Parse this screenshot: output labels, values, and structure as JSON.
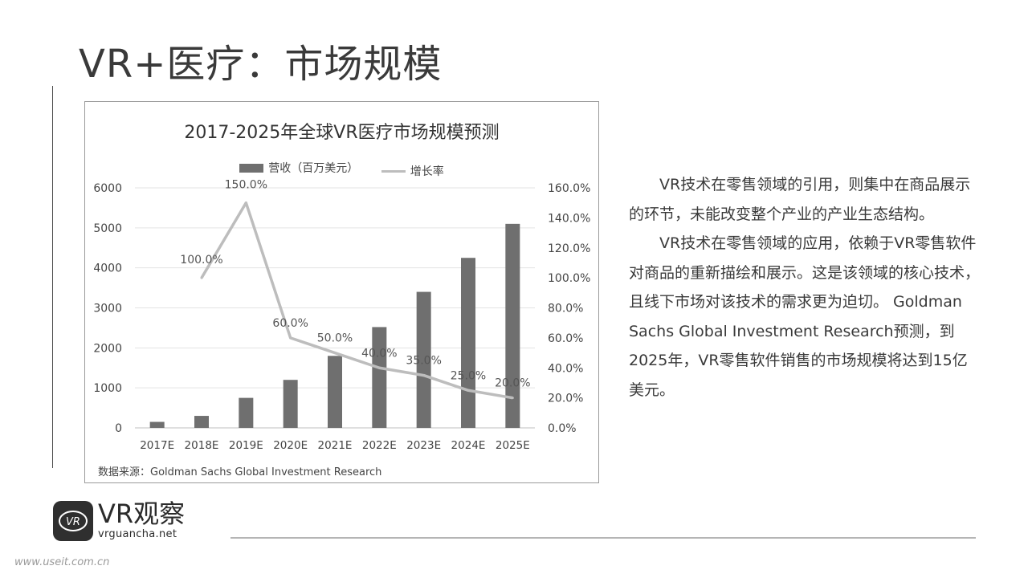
{
  "slide": {
    "title": "VR+医疗：市场规模"
  },
  "chart_data": {
    "type": "bar",
    "title": "2017-2025年全球VR医疗市场规模预测",
    "categories": [
      "2017E",
      "2018E",
      "2019E",
      "2020E",
      "2021E",
      "2022E",
      "2023E",
      "2024E",
      "2025E"
    ],
    "series": [
      {
        "name": "营收（百万美元）",
        "type": "bar",
        "axis": "left",
        "values": [
          150,
          300,
          750,
          1200,
          1800,
          2520,
          3400,
          4250,
          5100
        ]
      },
      {
        "name": "增长率",
        "type": "line",
        "axis": "right",
        "values": [
          null,
          100.0,
          150.0,
          60.0,
          50.0,
          40.0,
          35.0,
          25.0,
          20.0
        ],
        "data_labels": [
          null,
          "100.0%",
          "150.0%",
          "60.0%",
          "50.0%",
          "40.0%",
          "35.0%",
          "25.0%",
          "20.0%"
        ]
      }
    ],
    "left_axis": {
      "ylim": [
        0,
        6000
      ],
      "ticks": [
        "0",
        "1000",
        "2000",
        "3000",
        "4000",
        "5000",
        "6000"
      ]
    },
    "right_axis": {
      "ylim": [
        0,
        160
      ],
      "ticks": [
        "0.0%",
        "20.0%",
        "40.0%",
        "60.0%",
        "80.0%",
        "100.0%",
        "120.0%",
        "140.0%",
        "160.0%"
      ]
    },
    "legend_position": "top",
    "grid": true,
    "colors": {
      "bar": "#6f6f6f",
      "line": "#bdbdbd",
      "grid": "#e3e3e3"
    },
    "source": "数据来源：Goldman Sachs Global Investment Research"
  },
  "text": {
    "para1": "VR技术在零售领域的引用，则集中在商品展示的环节，未能改变整个产业的产业生态结构。",
    "para2": "VR技术在零售领域的应用，依赖于VR零售软件对商品的重新描绘和展示。这是该领域的核心技术，且线下市场对该技术的需求更为迫切。 Goldman Sachs Global Investment Research预测，到2025年，VR零售软件销售的市场规模将达到15亿美元。"
  },
  "logo": {
    "badge_text": "VR",
    "name": "VR观察",
    "url": "vrguancha.net"
  },
  "watermark": "www.useit.com.cn"
}
